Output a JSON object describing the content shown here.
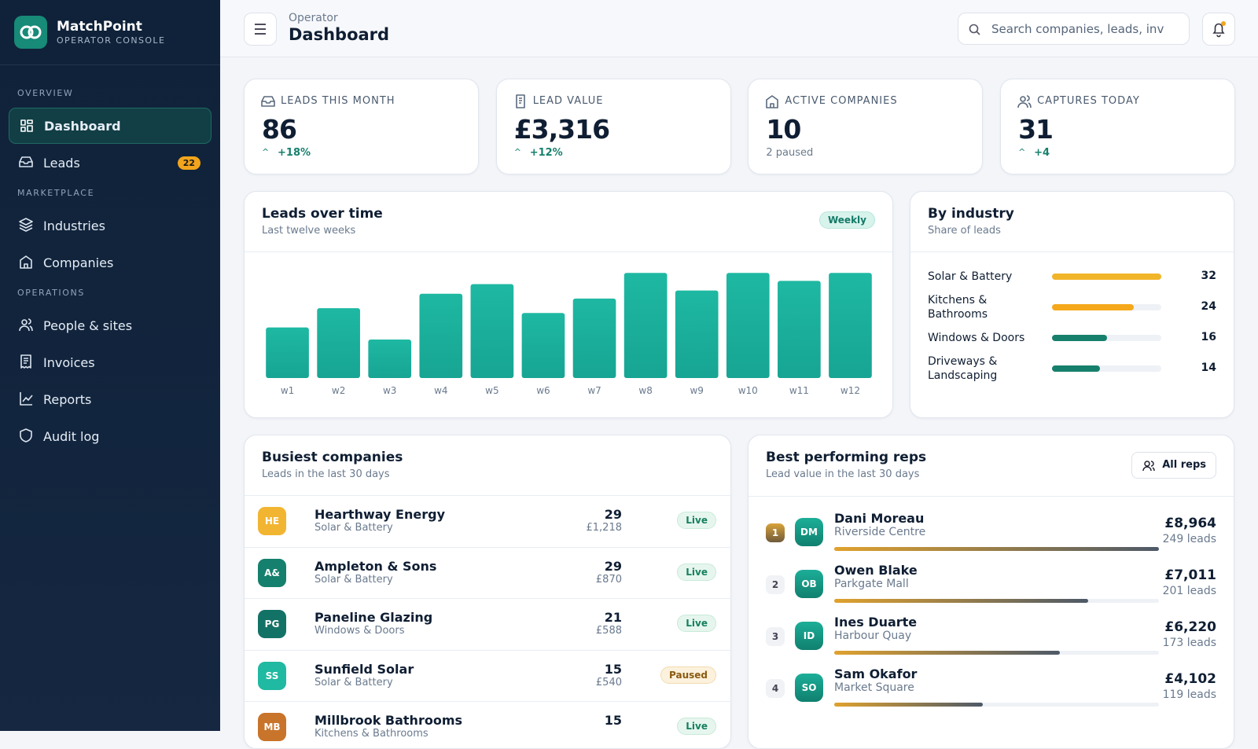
{
  "brand": {
    "name": "MatchPoint",
    "subtitle": "OPERATOR CONSOLE"
  },
  "nav": [
    {
      "section": "OVERVIEW",
      "items": [
        {
          "label": "Dashboard",
          "active": true
        },
        {
          "label": "Leads",
          "badge": "22"
        }
      ]
    },
    {
      "section": "MARKETPLACE",
      "items": [
        {
          "label": "Industries"
        },
        {
          "label": "Companies"
        }
      ]
    },
    {
      "section": "OPERATIONS",
      "items": [
        {
          "label": "People & sites"
        },
        {
          "label": "Invoices"
        },
        {
          "label": "Reports"
        },
        {
          "label": "Audit log"
        }
      ]
    }
  ],
  "header": {
    "eyebrow": "Operator",
    "title": "Dashboard",
    "search_placeholder": "Search companies, leads, inv"
  },
  "kpis": [
    {
      "label": "LEADS THIS MONTH",
      "value": "86",
      "delta": "+18%"
    },
    {
      "label": "LEAD VALUE",
      "value": "£3,316",
      "delta": "+12%"
    },
    {
      "label": "ACTIVE COMPANIES",
      "value": "10",
      "note": "2 paused"
    },
    {
      "label": "CAPTURES TODAY",
      "value": "31",
      "delta": "+4"
    }
  ],
  "chart_data": {
    "type": "bar",
    "title": "Leads over time",
    "subtitle": "Last twelve weeks",
    "badge": "Weekly",
    "categories": [
      "w1",
      "w2",
      "w3",
      "w4",
      "w5",
      "w6",
      "w7",
      "w8",
      "w9",
      "w10",
      "w11",
      "w12"
    ],
    "values": [
      63,
      87,
      48,
      105,
      117,
      81,
      99,
      131,
      109,
      131,
      121,
      131
    ],
    "color": "#17a593",
    "ylim": [
      0,
      140
    ]
  },
  "industry": {
    "title": "By industry",
    "subtitle": "Share of leads",
    "rows": [
      {
        "name": "Solar & Battery",
        "value": 32,
        "color": "#f1b52a"
      },
      {
        "name": "Kitchens & Bathrooms",
        "value": 24,
        "color": "#f5a81c"
      },
      {
        "name": "Windows & Doors",
        "value": 16,
        "color": "#17806c"
      },
      {
        "name": "Driveways & Landscaping",
        "value": 14,
        "color": "#17806c"
      }
    ]
  },
  "companies": {
    "title": "Busiest companies",
    "subtitle": "Leads in the last 30 days",
    "rows": [
      {
        "initials": "HE",
        "name": "Hearthway Energy",
        "industry": "Solar & Battery",
        "leads": 29,
        "value": "£1,218",
        "status": "Live",
        "color": "#f2b531"
      },
      {
        "initials": "A&",
        "name": "Ampleton & Sons",
        "industry": "Solar & Battery",
        "leads": 29,
        "value": "£870",
        "status": "Live",
        "color": "#15806d"
      },
      {
        "initials": "PG",
        "name": "Paneline Glazing",
        "industry": "Windows & Doors",
        "leads": 21,
        "value": "£588",
        "status": "Live",
        "color": "#137266"
      },
      {
        "initials": "SS",
        "name": "Sunfield Solar",
        "industry": "Solar & Battery",
        "leads": 15,
        "value": "£540",
        "status": "Paused",
        "color": "#20b9a1"
      },
      {
        "initials": "MB",
        "name": "Millbrook Bathrooms",
        "industry": "Kitchens & Bathrooms",
        "leads": 15,
        "status": "Live",
        "color": "#c8742a"
      }
    ]
  },
  "reps": {
    "title": "Best performing reps",
    "subtitle": "Lead value in the last 30 days",
    "button": "All reps",
    "rows": [
      {
        "rank": "1",
        "initials": "DM",
        "name": "Dani Moreau",
        "site": "Riverside Centre",
        "value": 8964,
        "value_label": "£8,964",
        "leads": "249 leads"
      },
      {
        "rank": "2",
        "initials": "OB",
        "name": "Owen Blake",
        "site": "Parkgate Mall",
        "value": 7011,
        "value_label": "£7,011",
        "leads": "201 leads"
      },
      {
        "rank": "3",
        "initials": "ID",
        "name": "Ines Duarte",
        "site": "Harbour Quay",
        "value": 6220,
        "value_label": "£6,220",
        "leads": "173 leads"
      },
      {
        "rank": "4",
        "initials": "SO",
        "name": "Sam Okafor",
        "site": "Market Square",
        "value": 4102,
        "value_label": "£4,102",
        "leads": "119 leads"
      }
    ]
  }
}
